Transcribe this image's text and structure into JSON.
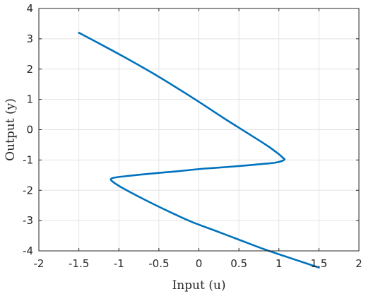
{
  "chart_data": {
    "type": "line",
    "xlabel": "Input (u)",
    "ylabel": "Output (y)",
    "xlim": [
      -2,
      2
    ],
    "ylim": [
      -4,
      4
    ],
    "xticks": [
      -2,
      -1.5,
      -1,
      -0.5,
      0,
      0.5,
      1,
      1.5,
      2
    ],
    "xtick_labels": [
      "-2",
      "-1.5",
      "-1",
      "-0.5",
      "0",
      "0.5",
      "1",
      "1.5",
      "2"
    ],
    "yticks": [
      -4,
      -3,
      -2,
      -1,
      0,
      1,
      2,
      3,
      4
    ],
    "ytick_labels": [
      "-4",
      "-3",
      "-2",
      "-1",
      "0",
      "1",
      "2",
      "3",
      "4"
    ],
    "grid": true,
    "series": [
      {
        "color": "#0072BD",
        "x": [
          -1.5,
          -1.2,
          -0.9,
          -0.6,
          -0.3,
          0.0,
          0.3,
          0.6,
          0.85,
          1.0,
          1.05,
          1.07,
          1.03,
          0.95,
          0.8,
          0.5,
          0.2,
          0.0,
          -0.3,
          -0.6,
          -0.9,
          -1.05,
          -1.1,
          -1.07,
          -0.95,
          -0.7,
          -0.4,
          -0.1,
          0.2,
          0.5,
          0.8,
          1.1,
          1.5
        ],
        "y": [
          3.2,
          2.78,
          2.35,
          1.9,
          1.42,
          0.92,
          0.4,
          -0.1,
          -0.52,
          -0.81,
          -0.93,
          -0.98,
          -1.04,
          -1.09,
          -1.13,
          -1.2,
          -1.26,
          -1.3,
          -1.38,
          -1.45,
          -1.53,
          -1.58,
          -1.63,
          -1.73,
          -1.93,
          -2.28,
          -2.67,
          -3.03,
          -3.33,
          -3.63,
          -3.93,
          -4.2,
          -4.55
        ]
      }
    ]
  }
}
